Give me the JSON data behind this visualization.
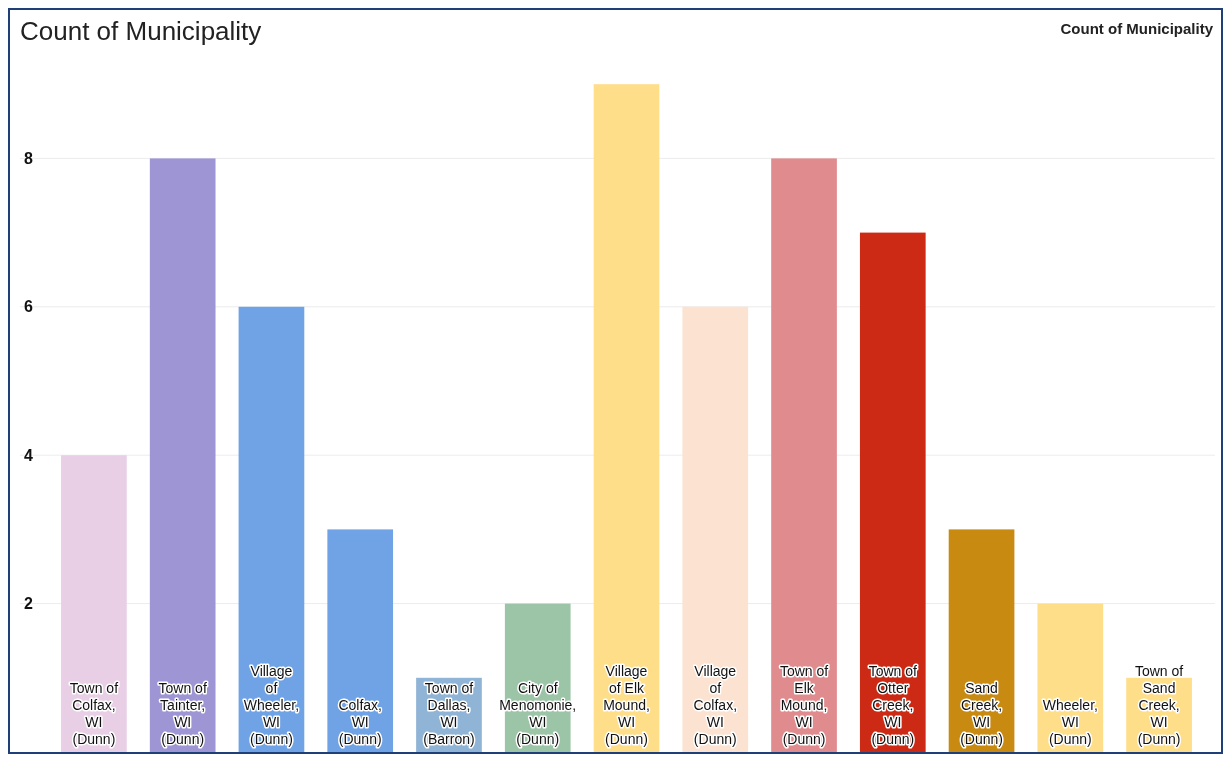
{
  "chart_data": {
    "type": "bar",
    "title": "Count of Municipality",
    "ylabel": "Count of Municipality",
    "categories": [
      "Town of Colfax, WI (Dunn)",
      "Town of Tainter, WI (Dunn)",
      "Village of Wheeler, WI (Dunn)",
      "Colfax, WI (Dunn)",
      "Town of Dallas, WI (Barron)",
      "City of Menomonie, WI (Dunn)",
      "Village of Elk Mound, WI (Dunn)",
      "Village of Colfax, WI (Dunn)",
      "Town of Elk Mound, WI (Dunn)",
      "Town of Otter Creek, WI (Dunn)",
      "Sand Creek, WI (Dunn)",
      "Wheeler, WI (Dunn)",
      "Town of Sand Creek, WI (Dunn)"
    ],
    "values": [
      4,
      8,
      6,
      3,
      1,
      2,
      9,
      6,
      8,
      7,
      3,
      2,
      1
    ],
    "colors": [
      "#e8cfe6",
      "#9d95d4",
      "#6fa3e6",
      "#6fa3e6",
      "#8fb4d6",
      "#9cc4a6",
      "#ffde8a",
      "#fce2d0",
      "#e08c8e",
      "#cc2a14",
      "#c98a12",
      "#ffde8a",
      "#ffde8a"
    ],
    "ylim": [
      0,
      10
    ],
    "yticks": [
      2,
      4,
      6,
      8
    ],
    "grid": "y"
  }
}
